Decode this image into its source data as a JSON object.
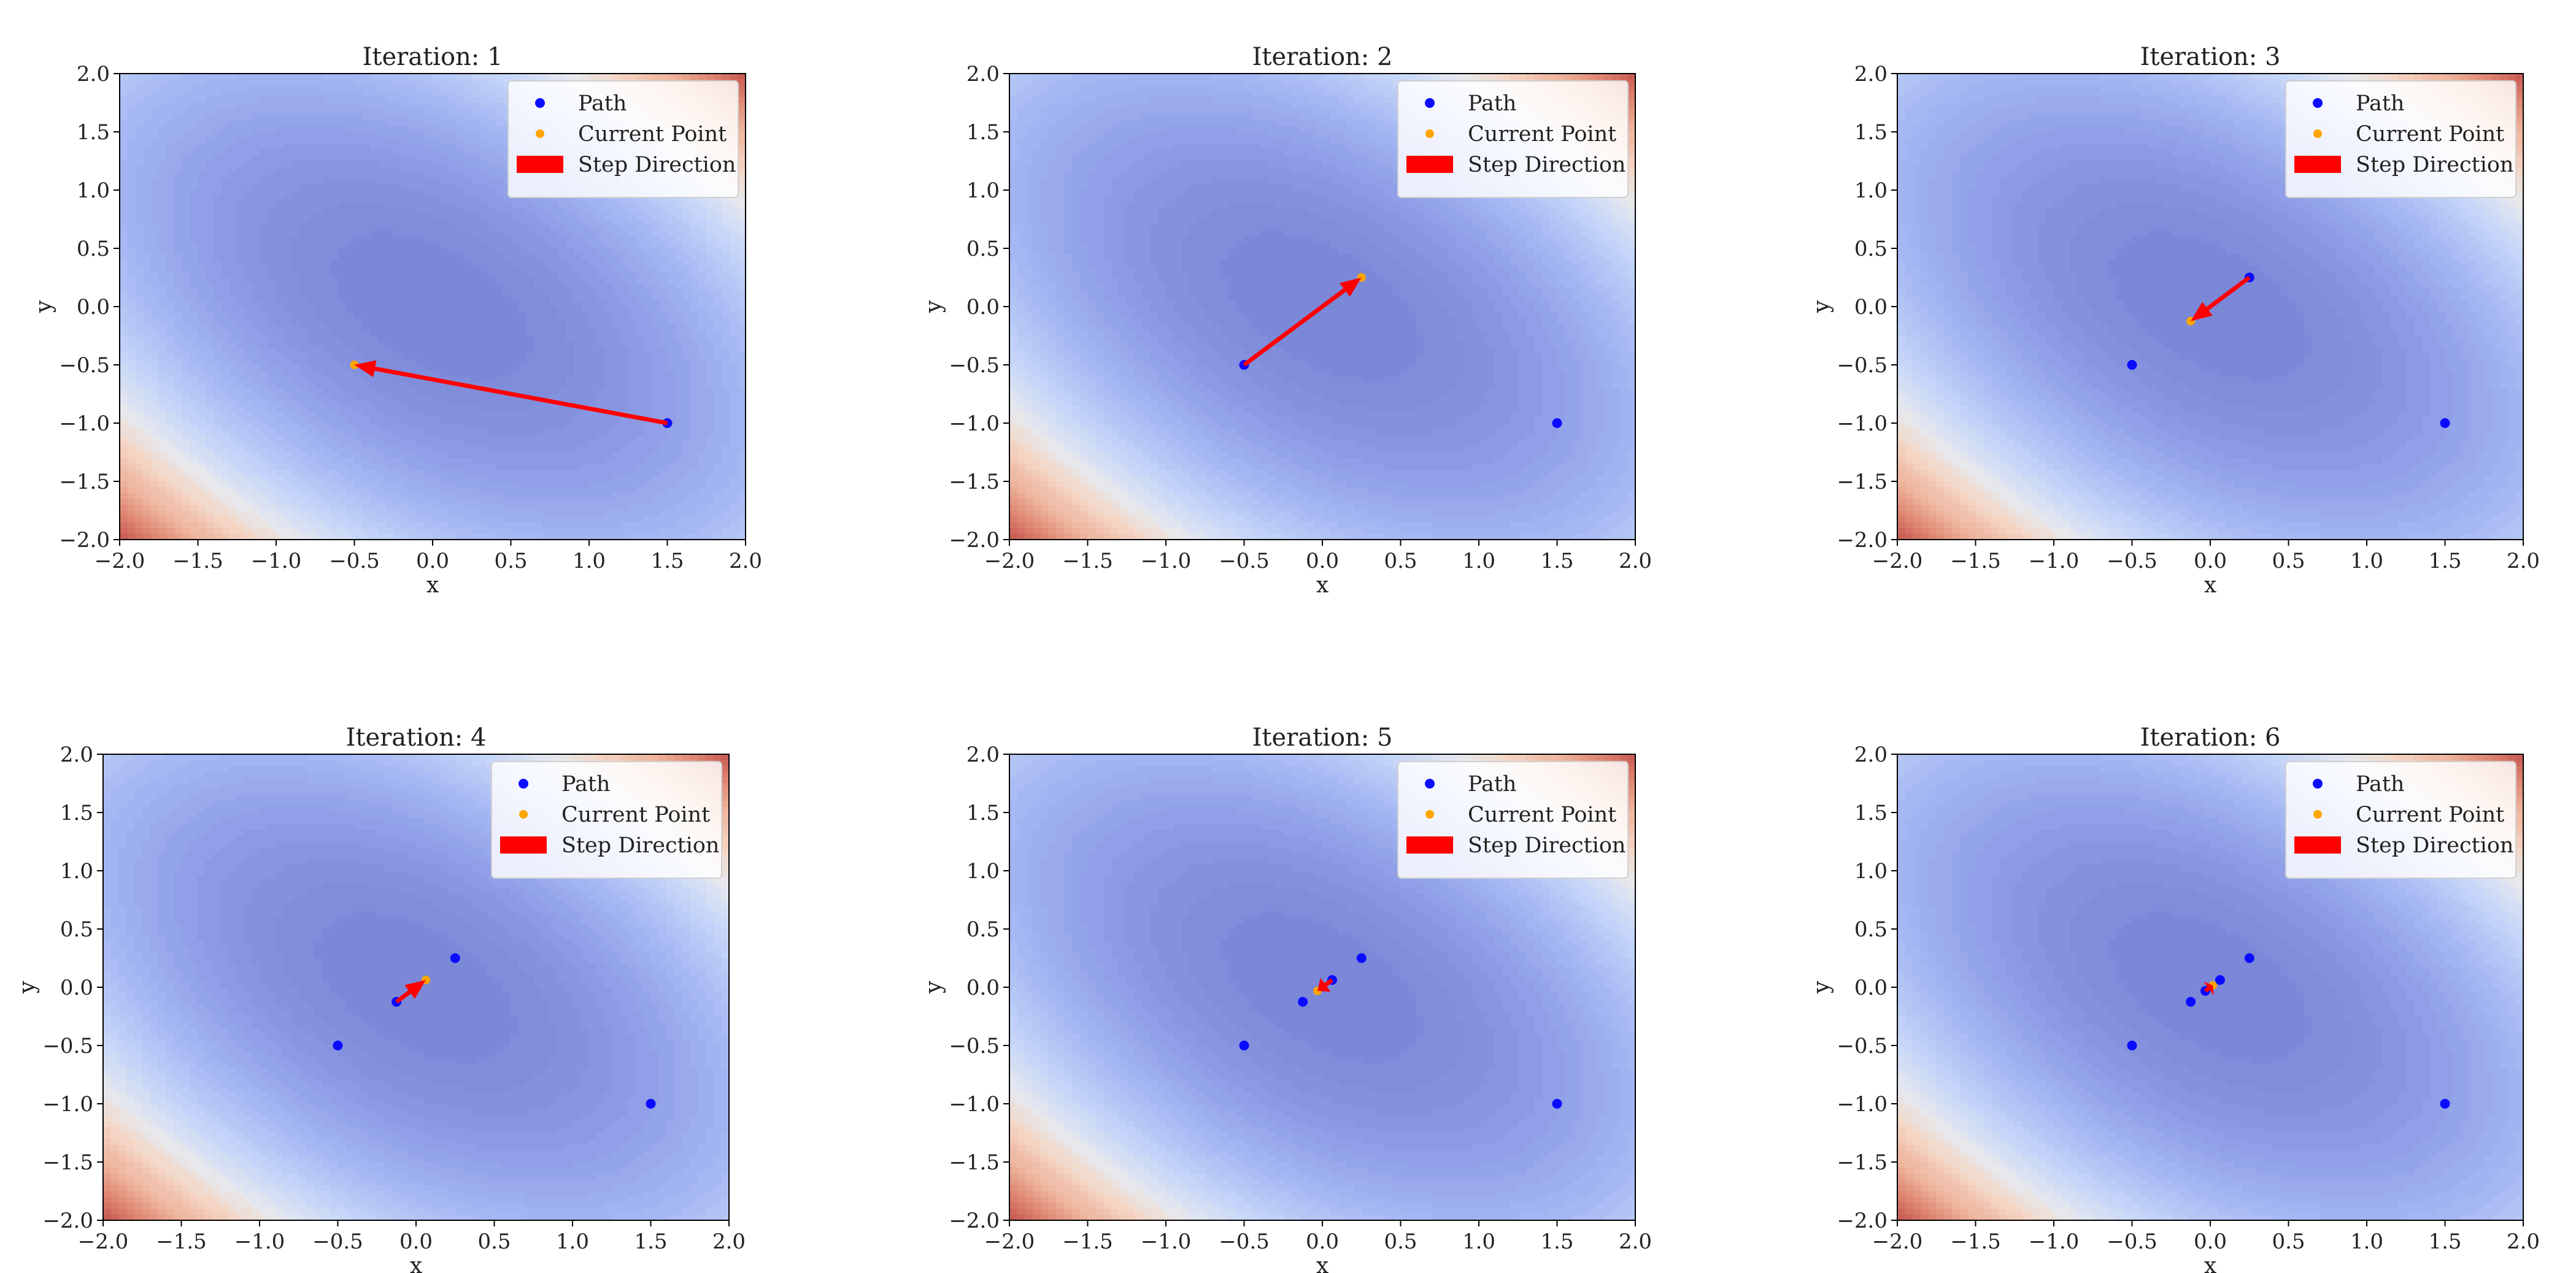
{
  "figure_title": "",
  "colors": {
    "path_point": "#0b0bff",
    "current_point": "#ffa500",
    "step_arrow": "#ff0000",
    "contour_low": "#7b88d8",
    "contour_mid": "#c4d4f6",
    "contour_high": "#c5534e"
  },
  "legend": {
    "location": "upper right",
    "entries": [
      {
        "label": "Path",
        "icon": "blue-dot-marker"
      },
      {
        "label": "Current Point",
        "icon": "orange-dot-marker"
      },
      {
        "label": "Step Direction",
        "icon": "red-arrow-patch"
      }
    ]
  },
  "chart_data": [
    {
      "type": "contour+scatter+arrow",
      "title": "Iteration: 1",
      "xlabel": "x",
      "ylabel": "y",
      "xlim": [
        -2,
        2
      ],
      "ylim": [
        -2,
        2
      ],
      "xticks": [
        "−2.0",
        "−1.5",
        "−1.0",
        "−0.5",
        "0.0",
        "0.5",
        "1.0",
        "1.5",
        "2.0"
      ],
      "yticks": [
        "−2.0",
        "−1.5",
        "−1.0",
        "−0.5",
        "0.0",
        "0.5",
        "1.0",
        "1.5",
        "2.0"
      ],
      "path": [
        {
          "x": 1.5,
          "y": -1.0
        }
      ],
      "current_point": {
        "x": -0.5,
        "y": -0.5
      },
      "step_arrow": {
        "from": {
          "x": 1.5,
          "y": -1.0
        },
        "to": {
          "x": -0.5,
          "y": -0.5
        }
      }
    },
    {
      "type": "contour+scatter+arrow",
      "title": "Iteration: 2",
      "xlabel": "x",
      "ylabel": "y",
      "xlim": [
        -2,
        2
      ],
      "ylim": [
        -2,
        2
      ],
      "xticks": [
        "−2.0",
        "−1.5",
        "−1.0",
        "−0.5",
        "0.0",
        "0.5",
        "1.0",
        "1.5",
        "2.0"
      ],
      "yticks": [
        "−2.0",
        "−1.5",
        "−1.0",
        "−0.5",
        "0.0",
        "0.5",
        "1.0",
        "1.5",
        "2.0"
      ],
      "path": [
        {
          "x": 1.5,
          "y": -1.0
        },
        {
          "x": -0.5,
          "y": -0.5
        }
      ],
      "current_point": {
        "x": 0.25,
        "y": 0.25
      },
      "step_arrow": {
        "from": {
          "x": -0.5,
          "y": -0.5
        },
        "to": {
          "x": 0.25,
          "y": 0.25
        }
      }
    },
    {
      "type": "contour+scatter+arrow",
      "title": "Iteration: 3",
      "xlabel": "x",
      "ylabel": "y",
      "xlim": [
        -2,
        2
      ],
      "ylim": [
        -2,
        2
      ],
      "xticks": [
        "−2.0",
        "−1.5",
        "−1.0",
        "−0.5",
        "0.0",
        "0.5",
        "1.0",
        "1.5",
        "2.0"
      ],
      "yticks": [
        "−2.0",
        "−1.5",
        "−1.0",
        "−0.5",
        "0.0",
        "0.5",
        "1.0",
        "1.5",
        "2.0"
      ],
      "path": [
        {
          "x": 1.5,
          "y": -1.0
        },
        {
          "x": -0.5,
          "y": -0.5
        },
        {
          "x": 0.25,
          "y": 0.25
        }
      ],
      "current_point": {
        "x": -0.125,
        "y": -0.125
      },
      "step_arrow": {
        "from": {
          "x": 0.25,
          "y": 0.25
        },
        "to": {
          "x": -0.125,
          "y": -0.125
        }
      }
    },
    {
      "type": "contour+scatter+arrow",
      "title": "Iteration: 4",
      "xlabel": "x",
      "ylabel": "y",
      "xlim": [
        -2,
        2
      ],
      "ylim": [
        -2,
        2
      ],
      "xticks": [
        "−2.0",
        "−1.5",
        "−1.0",
        "−0.5",
        "0.0",
        "0.5",
        "1.0",
        "1.5",
        "2.0"
      ],
      "yticks": [
        "−2.0",
        "−1.5",
        "−1.0",
        "−0.5",
        "0.0",
        "0.5",
        "1.0",
        "1.5",
        "2.0"
      ],
      "path": [
        {
          "x": 1.5,
          "y": -1.0
        },
        {
          "x": -0.5,
          "y": -0.5
        },
        {
          "x": 0.25,
          "y": 0.25
        },
        {
          "x": -0.125,
          "y": -0.125
        }
      ],
      "current_point": {
        "x": 0.0625,
        "y": 0.0625
      },
      "step_arrow": {
        "from": {
          "x": -0.125,
          "y": -0.125
        },
        "to": {
          "x": 0.0625,
          "y": 0.0625
        }
      }
    },
    {
      "type": "contour+scatter+arrow",
      "title": "Iteration: 5",
      "xlabel": "x",
      "ylabel": "y",
      "xlim": [
        -2,
        2
      ],
      "ylim": [
        -2,
        2
      ],
      "xticks": [
        "−2.0",
        "−1.5",
        "−1.0",
        "−0.5",
        "0.0",
        "0.5",
        "1.0",
        "1.5",
        "2.0"
      ],
      "yticks": [
        "−2.0",
        "−1.5",
        "−1.0",
        "−0.5",
        "0.0",
        "0.5",
        "1.0",
        "1.5",
        "2.0"
      ],
      "path": [
        {
          "x": 1.5,
          "y": -1.0
        },
        {
          "x": -0.5,
          "y": -0.5
        },
        {
          "x": 0.25,
          "y": 0.25
        },
        {
          "x": -0.125,
          "y": -0.125
        },
        {
          "x": 0.0625,
          "y": 0.0625
        }
      ],
      "current_point": {
        "x": -0.03125,
        "y": -0.03125
      },
      "step_arrow": {
        "from": {
          "x": 0.0625,
          "y": 0.0625
        },
        "to": {
          "x": -0.03125,
          "y": -0.03125
        }
      }
    },
    {
      "type": "contour+scatter+arrow",
      "title": "Iteration: 6",
      "xlabel": "x",
      "ylabel": "y",
      "xlim": [
        -2,
        2
      ],
      "ylim": [
        -2,
        2
      ],
      "xticks": [
        "−2.0",
        "−1.5",
        "−1.0",
        "−0.5",
        "0.0",
        "0.5",
        "1.0",
        "1.5",
        "2.0"
      ],
      "yticks": [
        "−2.0",
        "−1.5",
        "−1.0",
        "−0.5",
        "0.0",
        "0.5",
        "1.0",
        "1.5",
        "2.0"
      ],
      "path": [
        {
          "x": 1.5,
          "y": -1.0
        },
        {
          "x": -0.5,
          "y": -0.5
        },
        {
          "x": 0.25,
          "y": 0.25
        },
        {
          "x": -0.125,
          "y": -0.125
        },
        {
          "x": 0.0625,
          "y": 0.0625
        },
        {
          "x": -0.03125,
          "y": -0.03125
        }
      ],
      "current_point": {
        "x": 0.015625,
        "y": 0.015625
      },
      "step_arrow": {
        "from": {
          "x": -0.03125,
          "y": -0.03125
        },
        "to": {
          "x": 0.015625,
          "y": 0.015625
        }
      }
    }
  ]
}
